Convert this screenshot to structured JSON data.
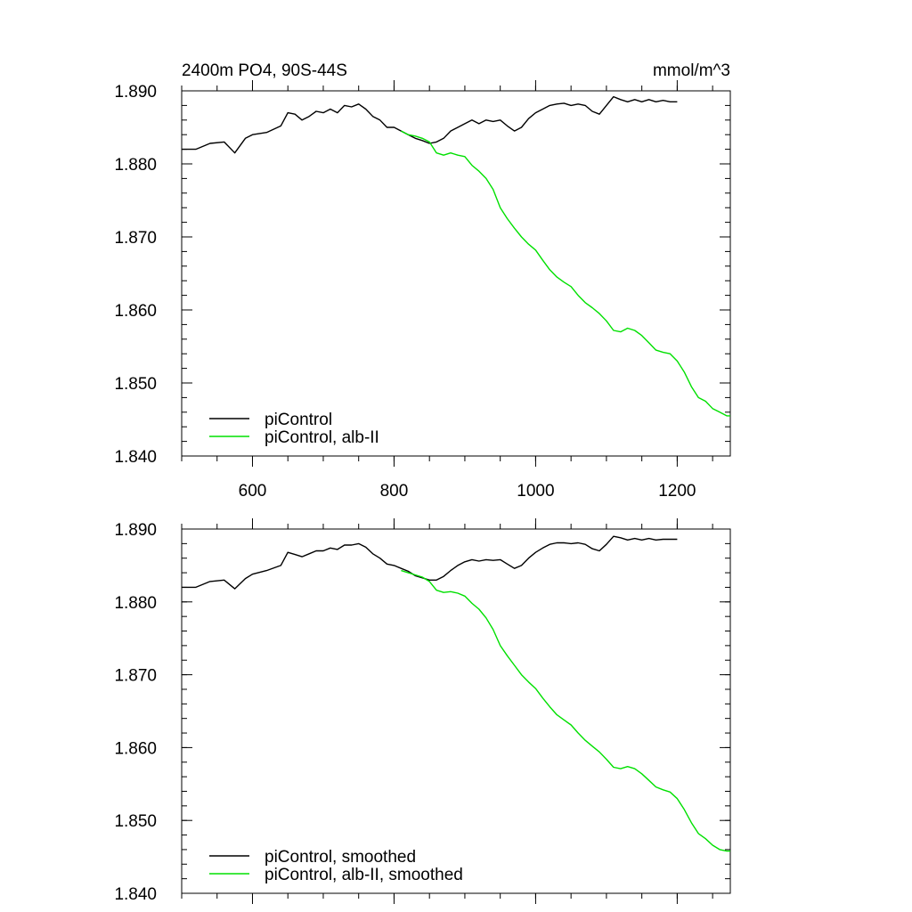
{
  "title_left": "2400m PO4, 90S-44S",
  "title_right": "mmol/m^3",
  "colors": {
    "piControl": "#000000",
    "alb": "#00e000"
  },
  "chart_data": [
    {
      "type": "line",
      "xlim": [
        500,
        1275
      ],
      "ylim": [
        1.84,
        1.89
      ],
      "x_ticks": [
        600,
        800,
        1000,
        1200
      ],
      "x_tick_labels": [
        "600",
        "800",
        "1000",
        "1200"
      ],
      "y_ticks": [
        1.84,
        1.85,
        1.86,
        1.87,
        1.88,
        1.89
      ],
      "y_tick_labels": [
        "1.840",
        "1.850",
        "1.860",
        "1.870",
        "1.880",
        "1.890"
      ],
      "grid": false,
      "legend_position": "bottom-left",
      "series": [
        {
          "name": "piControl",
          "color": "#000000",
          "x": [
            500,
            520,
            540,
            560,
            575,
            590,
            600,
            620,
            640,
            650,
            660,
            670,
            680,
            690,
            700,
            710,
            720,
            730,
            740,
            750,
            760,
            770,
            780,
            790,
            800,
            810,
            820,
            830,
            840,
            850,
            860,
            870,
            880,
            890,
            900,
            910,
            920,
            930,
            940,
            950,
            960,
            970,
            980,
            990,
            1000,
            1010,
            1020,
            1030,
            1040,
            1050,
            1060,
            1070,
            1080,
            1090,
            1100,
            1110,
            1120,
            1130,
            1140,
            1150,
            1160,
            1170,
            1180,
            1190,
            1200
          ],
          "y": [
            1.882,
            1.882,
            1.8828,
            1.883,
            1.8815,
            1.8835,
            1.884,
            1.8843,
            1.8852,
            1.887,
            1.8868,
            1.886,
            1.8865,
            1.8872,
            1.887,
            1.8875,
            1.887,
            1.888,
            1.8878,
            1.8882,
            1.8875,
            1.8865,
            1.886,
            1.885,
            1.885,
            1.8845,
            1.884,
            1.8835,
            1.8832,
            1.8828,
            1.883,
            1.8835,
            1.8845,
            1.885,
            1.8855,
            1.886,
            1.8855,
            1.886,
            1.8858,
            1.886,
            1.8852,
            1.8845,
            1.885,
            1.8862,
            1.887,
            1.8875,
            1.888,
            1.8882,
            1.8883,
            1.888,
            1.8882,
            1.888,
            1.8872,
            1.8868,
            1.888,
            1.8892,
            1.8888,
            1.8885,
            1.8888,
            1.8885,
            1.8888,
            1.8885,
            1.8887,
            1.8885,
            1.8885
          ]
        },
        {
          "name": "piControl, alb-II",
          "color": "#00e000",
          "x": [
            810,
            820,
            830,
            840,
            850,
            860,
            870,
            880,
            890,
            900,
            910,
            920,
            930,
            940,
            950,
            960,
            970,
            980,
            990,
            1000,
            1010,
            1020,
            1030,
            1040,
            1050,
            1060,
            1070,
            1080,
            1090,
            1100,
            1110,
            1120,
            1130,
            1140,
            1150,
            1160,
            1170,
            1180,
            1190,
            1200,
            1210,
            1220,
            1230,
            1240,
            1250,
            1260,
            1270,
            1275
          ],
          "y": [
            1.8845,
            1.884,
            1.8838,
            1.8835,
            1.883,
            1.8815,
            1.8812,
            1.8815,
            1.8812,
            1.881,
            1.8798,
            1.879,
            1.878,
            1.8765,
            1.874,
            1.8725,
            1.8712,
            1.87,
            1.869,
            1.8682,
            1.8668,
            1.8655,
            1.8645,
            1.8638,
            1.8632,
            1.862,
            1.861,
            1.8603,
            1.8595,
            1.8585,
            1.8572,
            1.857,
            1.8575,
            1.8572,
            1.8565,
            1.8555,
            1.8545,
            1.8542,
            1.854,
            1.853,
            1.8515,
            1.8495,
            1.848,
            1.8475,
            1.8465,
            1.846,
            1.8455,
            1.8455
          ]
        }
      ]
    },
    {
      "type": "line",
      "xlim": [
        500,
        1275
      ],
      "ylim": [
        1.84,
        1.89
      ],
      "x_ticks": [
        600,
        800,
        1000,
        1200
      ],
      "y_ticks": [
        1.84,
        1.85,
        1.86,
        1.87,
        1.88,
        1.89
      ],
      "y_tick_labels": [
        "1.840",
        "1.850",
        "1.860",
        "1.870",
        "1.880",
        "1.890"
      ],
      "grid": false,
      "legend_position": "bottom-left",
      "series": [
        {
          "name": "piControl, smoothed",
          "color": "#000000",
          "x": [
            500,
            520,
            540,
            560,
            575,
            590,
            600,
            620,
            640,
            650,
            660,
            670,
            680,
            690,
            700,
            710,
            720,
            730,
            740,
            750,
            760,
            770,
            780,
            790,
            800,
            810,
            820,
            830,
            840,
            850,
            860,
            870,
            880,
            890,
            900,
            910,
            920,
            930,
            940,
            950,
            960,
            970,
            980,
            990,
            1000,
            1010,
            1020,
            1030,
            1040,
            1050,
            1060,
            1070,
            1080,
            1090,
            1100,
            1110,
            1120,
            1130,
            1140,
            1150,
            1160,
            1170,
            1180,
            1190,
            1200
          ],
          "y": [
            1.882,
            1.882,
            1.8828,
            1.883,
            1.8818,
            1.8832,
            1.8838,
            1.8843,
            1.885,
            1.8868,
            1.8865,
            1.8862,
            1.8866,
            1.887,
            1.887,
            1.8874,
            1.8872,
            1.8878,
            1.8878,
            1.888,
            1.8875,
            1.8866,
            1.886,
            1.8852,
            1.885,
            1.8846,
            1.8842,
            1.8836,
            1.8833,
            1.883,
            1.883,
            1.8835,
            1.8843,
            1.885,
            1.8855,
            1.8858,
            1.8856,
            1.8858,
            1.8857,
            1.8858,
            1.8852,
            1.8846,
            1.885,
            1.886,
            1.8868,
            1.8874,
            1.8879,
            1.8881,
            1.8881,
            1.888,
            1.8881,
            1.8879,
            1.8873,
            1.887,
            1.8879,
            1.889,
            1.8888,
            1.8885,
            1.8887,
            1.8885,
            1.8887,
            1.8885,
            1.8886,
            1.8886,
            1.8886
          ]
        },
        {
          "name": "piControl, alb-II, smoothed",
          "color": "#00e000",
          "x": [
            810,
            820,
            830,
            840,
            850,
            860,
            870,
            880,
            890,
            900,
            910,
            920,
            930,
            940,
            950,
            960,
            970,
            980,
            990,
            1000,
            1010,
            1020,
            1030,
            1040,
            1050,
            1060,
            1070,
            1080,
            1090,
            1100,
            1110,
            1120,
            1130,
            1140,
            1150,
            1160,
            1170,
            1180,
            1190,
            1200,
            1210,
            1220,
            1230,
            1240,
            1250,
            1260,
            1270,
            1275
          ],
          "y": [
            1.8843,
            1.884,
            1.8837,
            1.8834,
            1.8828,
            1.8816,
            1.8813,
            1.8814,
            1.8812,
            1.8808,
            1.8798,
            1.879,
            1.8778,
            1.8762,
            1.874,
            1.8726,
            1.8713,
            1.87,
            1.869,
            1.8681,
            1.8668,
            1.8656,
            1.8645,
            1.8638,
            1.8631,
            1.862,
            1.861,
            1.8602,
            1.8594,
            1.8584,
            1.8573,
            1.8571,
            1.8574,
            1.8571,
            1.8564,
            1.8555,
            1.8546,
            1.8542,
            1.8539,
            1.853,
            1.8515,
            1.8497,
            1.8482,
            1.8475,
            1.8466,
            1.846,
            1.8458,
            1.8458
          ]
        }
      ]
    }
  ]
}
